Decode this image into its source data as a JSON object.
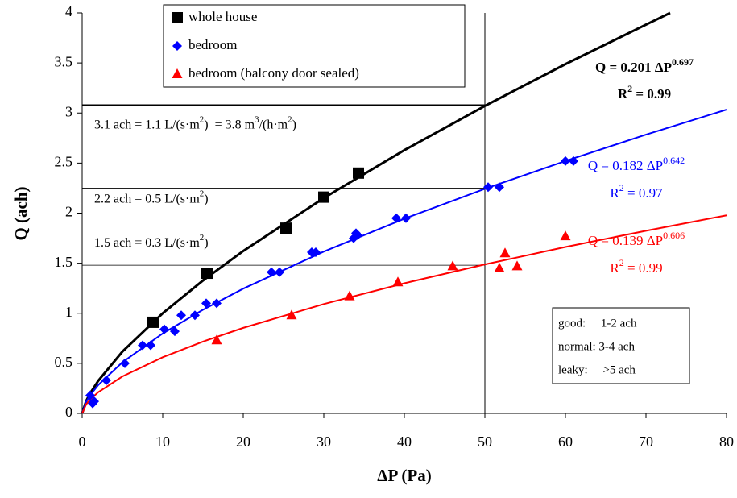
{
  "chart_data": {
    "type": "scatter",
    "xlabel": "ΔP (Pa)",
    "ylabel": "Q (ach)",
    "xlim": [
      0,
      80
    ],
    "xticks": [
      0,
      10,
      20,
      30,
      40,
      50,
      60,
      70,
      80
    ],
    "ylim": [
      0,
      4
    ],
    "yticks": [
      0,
      0.5,
      1,
      1.5,
      2,
      2.5,
      3,
      3.5,
      4
    ],
    "legend": "top-left",
    "series": [
      {
        "name": "whole house",
        "color": "#000000",
        "marker": "square",
        "x": [
          8.8,
          15.5,
          25.3,
          30,
          34.3
        ],
        "values": [
          0.91,
          1.4,
          1.85,
          2.16,
          2.4
        ]
      },
      {
        "name": "bedroom",
        "color": "#0000ff",
        "marker": "diamond",
        "x": [
          1,
          1.5,
          1.3,
          3,
          5.3,
          7.5,
          8.5,
          10.2,
          11.5,
          12.3,
          14,
          15.4,
          16.7,
          23.5,
          24.5,
          28.5,
          29,
          33.7,
          34.2,
          34,
          39,
          40.2,
          50.4,
          51.8,
          60,
          61
        ],
        "values": [
          0.18,
          0.12,
          0.1,
          0.33,
          0.5,
          0.68,
          0.68,
          0.84,
          0.82,
          0.98,
          0.98,
          1.1,
          1.1,
          1.41,
          1.41,
          1.61,
          1.61,
          1.75,
          1.78,
          1.8,
          1.95,
          1.95,
          2.26,
          2.26,
          2.52,
          2.52
        ]
      },
      {
        "name": "bedroom (balcony door sealed)",
        "color": "#ff0000",
        "marker": "triangle",
        "x": [
          16.7,
          26,
          33.2,
          39.2,
          46,
          51.8,
          52.5,
          54,
          60
        ],
        "values": [
          0.73,
          0.98,
          1.17,
          1.31,
          1.47,
          1.45,
          1.6,
          1.47,
          1.77
        ]
      }
    ],
    "fits": [
      {
        "color": "#000000",
        "x": [
          0,
          0.5,
          1,
          2,
          5,
          10,
          15,
          20,
          30,
          40,
          50,
          60,
          70,
          73
        ],
        "values": [
          0,
          0.124,
          0.201,
          0.326,
          0.617,
          1.0,
          1.327,
          1.622,
          2.151,
          2.629,
          3.071,
          3.488,
          3.883,
          4.0
        ],
        "equation": [
          "Q = 0.201 ΔP",
          "0.697"
        ],
        "r2": [
          "R",
          "2",
          " = 0.99"
        ]
      },
      {
        "color": "#0000ff",
        "x": [
          0,
          0.5,
          1,
          2,
          5,
          10,
          15,
          20,
          30,
          40,
          50,
          60,
          70,
          80
        ],
        "values": [
          0,
          0.117,
          0.182,
          0.284,
          0.511,
          0.798,
          1.035,
          1.246,
          1.616,
          1.944,
          2.243,
          2.521,
          2.784,
          3.034
        ],
        "equation": [
          "Q = 0.182 ΔP",
          "0.642"
        ],
        "r2": [
          "R",
          "2",
          " = 0.97"
        ]
      },
      {
        "color": "#ff0000",
        "x": [
          0,
          0.5,
          1,
          2,
          5,
          10,
          15,
          20,
          30,
          40,
          50,
          60,
          70,
          80
        ],
        "values": [
          0,
          0.091,
          0.139,
          0.212,
          0.369,
          0.561,
          0.717,
          0.854,
          1.092,
          1.3,
          1.488,
          1.662,
          1.824,
          1.978
        ],
        "equation": [
          "Q = 0.139 ΔP",
          "0.606"
        ],
        "r2": [
          "R",
          "2",
          " = 0.99"
        ]
      }
    ],
    "vline_x": 50,
    "reference_lines": [
      {
        "y": 3.08,
        "label": [
          "3.1 ach = 1.1 L/(s·m",
          "2",
          ")  = 3.8 m",
          "3",
          "/(h·m",
          "2",
          ")"
        ]
      },
      {
        "y": 2.25,
        "label": [
          "2.2 ach = 0.5 L/(s·m",
          "2",
          ")"
        ]
      },
      {
        "y": 1.48,
        "label": [
          "1.5 ach = 0.3 L/(s·m",
          "2",
          ")"
        ]
      }
    ],
    "notes": [
      "good:     1-2 ach",
      "normal: 3-4 ach",
      "leaky:     >5 ach"
    ]
  }
}
